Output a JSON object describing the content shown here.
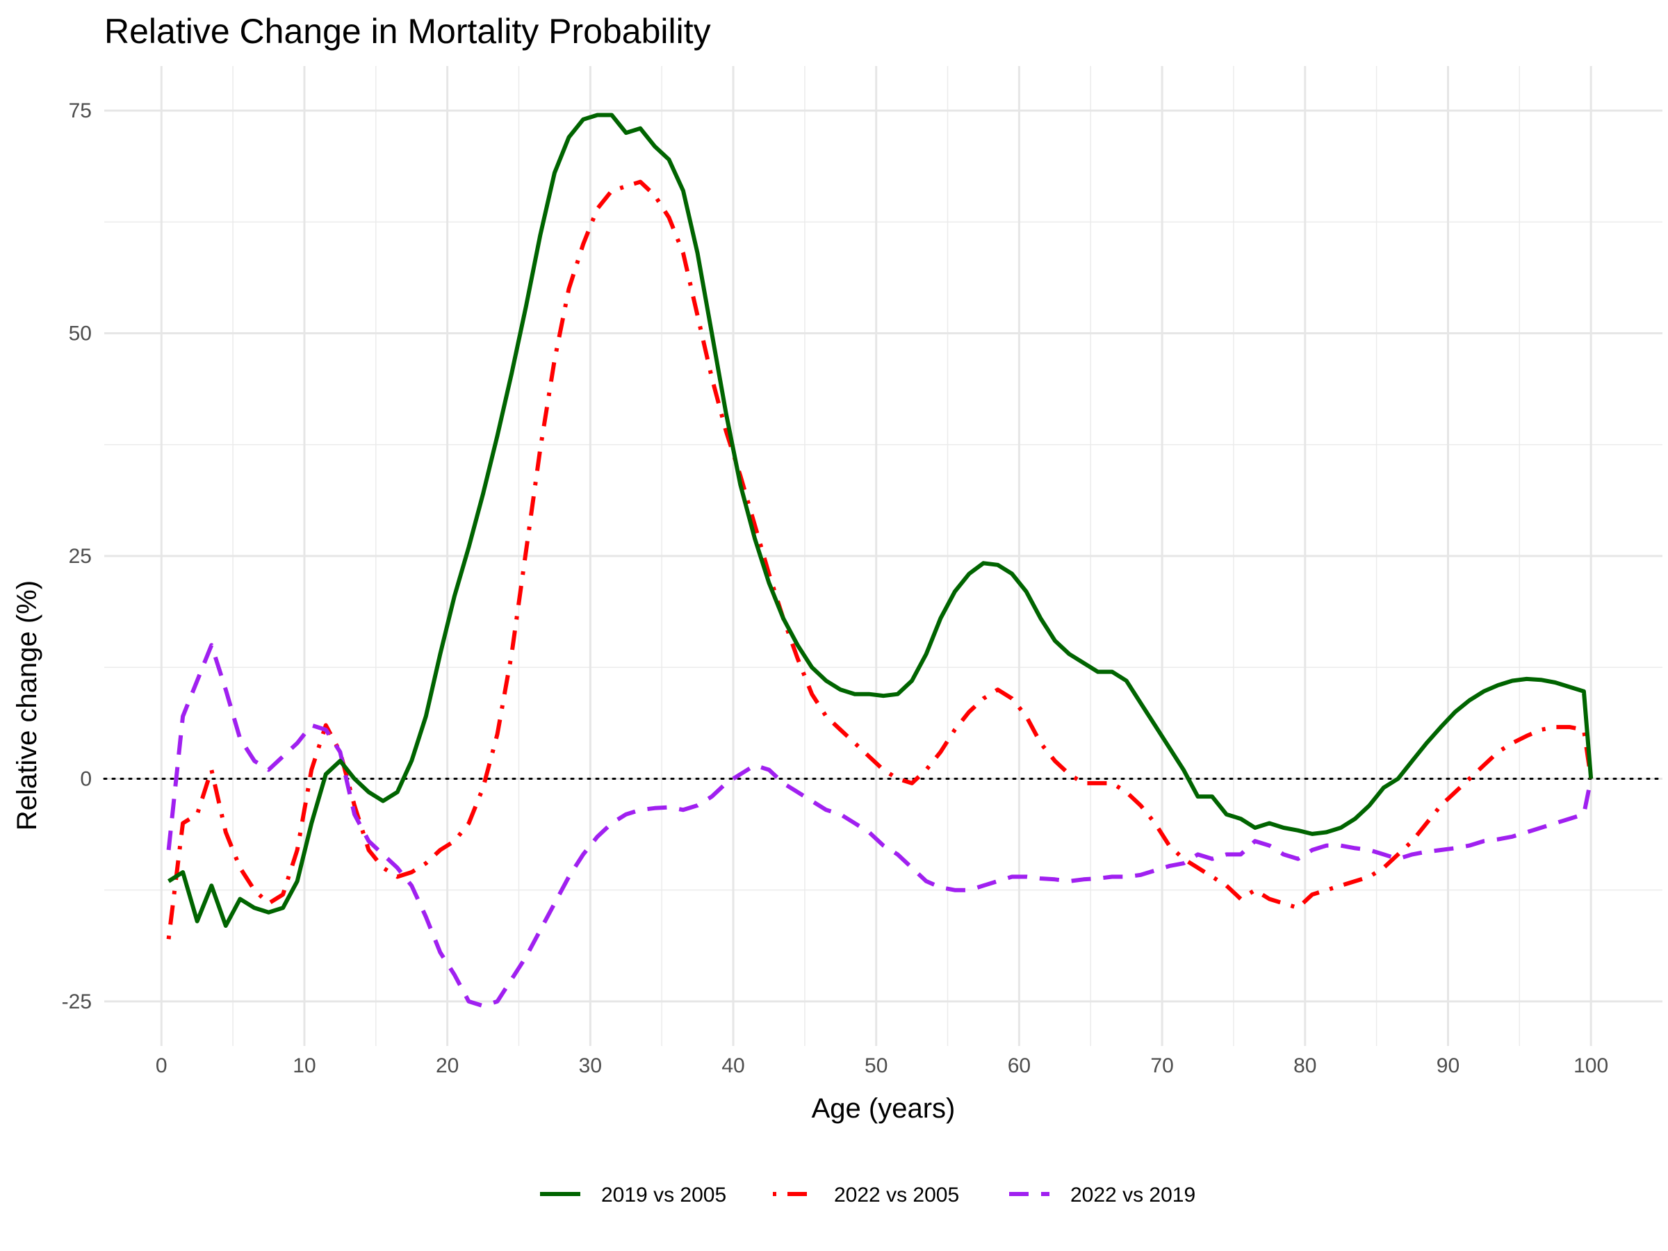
{
  "chart_data": {
    "type": "line",
    "title": "Relative Change in Mortality Probability",
    "xlabel": "Age (years)",
    "ylabel": "Relative change (%)",
    "xlim": [
      -4,
      105
    ],
    "ylim": [
      -30,
      80
    ],
    "x_ticks": [
      0,
      10,
      20,
      30,
      40,
      50,
      60,
      70,
      80,
      90,
      100
    ],
    "x_tick_labels": [
      "0",
      "10",
      "20",
      "30",
      "40",
      "50",
      "60",
      "70",
      "80",
      "90",
      "100"
    ],
    "y_ticks": [
      -25,
      0,
      25,
      50,
      75
    ],
    "y_tick_labels": [
      "-25",
      "0",
      "25",
      "50",
      "75"
    ],
    "reference_line": {
      "y": 0,
      "style": "dotted",
      "color": "#000000"
    },
    "grid": true,
    "legend_position": "bottom",
    "series": [
      {
        "name": "2019 vs 2005",
        "color": "#006400",
        "dash": "solid",
        "points": [
          [
            0.5,
            -11.5
          ],
          [
            1.5,
            -10.5
          ],
          [
            2.5,
            -16
          ],
          [
            3.5,
            -12
          ],
          [
            4.5,
            -16.5
          ],
          [
            5.5,
            -13.5
          ],
          [
            6.5,
            -14.5
          ],
          [
            7.5,
            -15
          ],
          [
            8.5,
            -14.5
          ],
          [
            9.5,
            -11.5
          ],
          [
            10.5,
            -5
          ],
          [
            11.5,
            0.5
          ],
          [
            12.5,
            2
          ],
          [
            13.5,
            0
          ],
          [
            14.5,
            -1.5
          ],
          [
            15.5,
            -2.5
          ],
          [
            16.5,
            -1.5
          ],
          [
            17.5,
            2
          ],
          [
            18.5,
            7
          ],
          [
            19.5,
            14
          ],
          [
            20.5,
            20.5
          ],
          [
            21.5,
            26
          ],
          [
            22.5,
            32
          ],
          [
            23.5,
            38.5
          ],
          [
            24.5,
            45.5
          ],
          [
            25.5,
            53
          ],
          [
            26.5,
            61
          ],
          [
            27.5,
            68
          ],
          [
            28.5,
            72
          ],
          [
            29.5,
            74
          ],
          [
            30.5,
            74.5
          ],
          [
            31.5,
            74.5
          ],
          [
            32.5,
            72.5
          ],
          [
            33.5,
            73
          ],
          [
            34.5,
            71
          ],
          [
            35.5,
            69.5
          ],
          [
            36.5,
            66
          ],
          [
            37.5,
            59
          ],
          [
            38.5,
            50
          ],
          [
            39.5,
            41
          ],
          [
            40.5,
            33
          ],
          [
            41.5,
            27
          ],
          [
            42.5,
            22
          ],
          [
            43.5,
            18
          ],
          [
            44.5,
            15
          ],
          [
            45.5,
            12.5
          ],
          [
            46.5,
            11
          ],
          [
            47.5,
            10
          ],
          [
            48.5,
            9.5
          ],
          [
            49.5,
            9.5
          ],
          [
            50.5,
            9.3
          ],
          [
            51.5,
            9.5
          ],
          [
            52.5,
            11
          ],
          [
            53.5,
            14
          ],
          [
            54.5,
            18
          ],
          [
            55.5,
            21
          ],
          [
            56.5,
            23
          ],
          [
            57.5,
            24.2
          ],
          [
            58.5,
            24
          ],
          [
            59.5,
            23
          ],
          [
            60.5,
            21
          ],
          [
            61.5,
            18
          ],
          [
            62.5,
            15.5
          ],
          [
            63.5,
            14
          ],
          [
            64.5,
            13
          ],
          [
            65.5,
            12
          ],
          [
            66.5,
            12
          ],
          [
            67.5,
            11
          ],
          [
            68.5,
            8.5
          ],
          [
            69.5,
            6
          ],
          [
            70.5,
            3.5
          ],
          [
            71.5,
            1
          ],
          [
            72.5,
            -2
          ],
          [
            73.5,
            -2
          ],
          [
            74.5,
            -4
          ],
          [
            75.5,
            -4.5
          ],
          [
            76.5,
            -5.5
          ],
          [
            77.5,
            -5
          ],
          [
            78.5,
            -5.5
          ],
          [
            79.5,
            -5.8
          ],
          [
            80.5,
            -6.2
          ],
          [
            81.5,
            -6
          ],
          [
            82.5,
            -5.5
          ],
          [
            83.5,
            -4.5
          ],
          [
            84.5,
            -3
          ],
          [
            85.5,
            -1
          ],
          [
            86.5,
            0
          ],
          [
            87.5,
            2
          ],
          [
            88.5,
            4
          ],
          [
            89.5,
            5.8
          ],
          [
            90.5,
            7.5
          ],
          [
            91.5,
            8.8
          ],
          [
            92.5,
            9.8
          ],
          [
            93.5,
            10.5
          ],
          [
            94.5,
            11
          ],
          [
            95.5,
            11.2
          ],
          [
            96.5,
            11.1
          ],
          [
            97.5,
            10.8
          ],
          [
            98.5,
            10.3
          ],
          [
            99.5,
            9.8
          ],
          [
            100,
            0
          ]
        ]
      },
      {
        "name": "2022 vs 2005",
        "color": "#ff0000",
        "dash": "dotdash",
        "points": [
          [
            0.5,
            -18
          ],
          [
            1.5,
            -5
          ],
          [
            2.5,
            -4
          ],
          [
            3.5,
            1
          ],
          [
            4.5,
            -6
          ],
          [
            5.5,
            -10
          ],
          [
            6.5,
            -12.5
          ],
          [
            7.5,
            -14
          ],
          [
            8.5,
            -13
          ],
          [
            9.5,
            -8
          ],
          [
            10.5,
            1
          ],
          [
            11.5,
            6
          ],
          [
            12.5,
            3
          ],
          [
            13.5,
            -3
          ],
          [
            14.5,
            -8
          ],
          [
            15.5,
            -10
          ],
          [
            16.5,
            -11
          ],
          [
            17.5,
            -10.5
          ],
          [
            18.5,
            -9.5
          ],
          [
            19.5,
            -8
          ],
          [
            20.5,
            -7
          ],
          [
            21.5,
            -5
          ],
          [
            22.5,
            -1
          ],
          [
            23.5,
            5
          ],
          [
            24.5,
            14
          ],
          [
            25.5,
            25.5
          ],
          [
            26.5,
            37
          ],
          [
            27.5,
            47
          ],
          [
            28.5,
            55
          ],
          [
            29.5,
            60
          ],
          [
            30.5,
            64
          ],
          [
            31.5,
            66
          ],
          [
            32.5,
            66.5
          ],
          [
            33.5,
            67
          ],
          [
            34.5,
            65.5
          ],
          [
            35.5,
            63
          ],
          [
            36.5,
            59
          ],
          [
            37.5,
            52
          ],
          [
            38.5,
            45
          ],
          [
            39.5,
            39
          ],
          [
            40.5,
            34
          ],
          [
            41.5,
            28.5
          ],
          [
            42.5,
            23
          ],
          [
            43.5,
            18
          ],
          [
            44.5,
            13.5
          ],
          [
            45.5,
            9.5
          ],
          [
            46.5,
            7
          ],
          [
            47.5,
            5.5
          ],
          [
            48.5,
            4
          ],
          [
            49.5,
            2.5
          ],
          [
            50.5,
            1
          ],
          [
            51.5,
            0
          ],
          [
            52.5,
            -0.5
          ],
          [
            53.5,
            1
          ],
          [
            54.5,
            3
          ],
          [
            55.5,
            5.5
          ],
          [
            56.5,
            7.5
          ],
          [
            57.5,
            9
          ],
          [
            58.5,
            10
          ],
          [
            59.5,
            9
          ],
          [
            60.5,
            7
          ],
          [
            61.5,
            4
          ],
          [
            62.5,
            2
          ],
          [
            63.5,
            0.5
          ],
          [
            64.5,
            -0.5
          ],
          [
            65.5,
            -0.5
          ],
          [
            66.5,
            -0.5
          ],
          [
            67.5,
            -1.5
          ],
          [
            68.5,
            -3
          ],
          [
            69.5,
            -5
          ],
          [
            70.5,
            -7.5
          ],
          [
            71.5,
            -9
          ],
          [
            72.5,
            -10
          ],
          [
            73.5,
            -11
          ],
          [
            74.5,
            -12
          ],
          [
            75.5,
            -13.5
          ],
          [
            76.5,
            -12.5
          ],
          [
            77.5,
            -13.5
          ],
          [
            78.5,
            -14
          ],
          [
            79.5,
            -14.5
          ],
          [
            80.5,
            -13
          ],
          [
            81.5,
            -12.5
          ],
          [
            82.5,
            -12
          ],
          [
            83.5,
            -11.5
          ],
          [
            84.5,
            -11
          ],
          [
            85.5,
            -10
          ],
          [
            86.5,
            -8.5
          ],
          [
            87.5,
            -7
          ],
          [
            88.5,
            -5
          ],
          [
            89.5,
            -3
          ],
          [
            90.5,
            -1.5
          ],
          [
            91.5,
            0
          ],
          [
            92.5,
            1.5
          ],
          [
            93.5,
            3
          ],
          [
            94.5,
            4
          ],
          [
            95.5,
            4.8
          ],
          [
            96.5,
            5.5
          ],
          [
            97.5,
            5.8
          ],
          [
            98.5,
            5.8
          ],
          [
            99.5,
            5.5
          ],
          [
            100,
            0
          ]
        ]
      },
      {
        "name": "2022 vs 2019",
        "color": "#a020f0",
        "dash": "dashed",
        "points": [
          [
            0.5,
            -8
          ],
          [
            1.5,
            7
          ],
          [
            2.5,
            11
          ],
          [
            3.5,
            15
          ],
          [
            4.5,
            10
          ],
          [
            5.5,
            4.5
          ],
          [
            6.5,
            2
          ],
          [
            7.5,
            1
          ],
          [
            8.5,
            2.5
          ],
          [
            9.5,
            4
          ],
          [
            10.5,
            6
          ],
          [
            11.5,
            5.5
          ],
          [
            12.5,
            3
          ],
          [
            13.5,
            -4
          ],
          [
            14.5,
            -7
          ],
          [
            15.5,
            -8.5
          ],
          [
            16.5,
            -10
          ],
          [
            17.5,
            -12
          ],
          [
            18.5,
            -15.5
          ],
          [
            19.5,
            -19.5
          ],
          [
            20.5,
            -22
          ],
          [
            21.5,
            -25
          ],
          [
            22.5,
            -25.5
          ],
          [
            23.5,
            -25
          ],
          [
            24.5,
            -22.5
          ],
          [
            25.5,
            -20
          ],
          [
            26.5,
            -17
          ],
          [
            27.5,
            -14
          ],
          [
            28.5,
            -11
          ],
          [
            29.5,
            -8.5
          ],
          [
            30.5,
            -6.5
          ],
          [
            31.5,
            -5
          ],
          [
            32.5,
            -4
          ],
          [
            33.5,
            -3.5
          ],
          [
            34.5,
            -3.3
          ],
          [
            35.5,
            -3.2
          ],
          [
            36.5,
            -3.5
          ],
          [
            37.5,
            -3
          ],
          [
            38.5,
            -2
          ],
          [
            39.5,
            -0.5
          ],
          [
            40.5,
            0.5
          ],
          [
            41.5,
            1.5
          ],
          [
            42.5,
            1
          ],
          [
            43.5,
            -0.5
          ],
          [
            44.5,
            -1.5
          ],
          [
            45.5,
            -2.5
          ],
          [
            46.5,
            -3.5
          ],
          [
            47.5,
            -4
          ],
          [
            48.5,
            -5
          ],
          [
            49.5,
            -6
          ],
          [
            50.5,
            -7.5
          ],
          [
            51.5,
            -8.5
          ],
          [
            52.5,
            -10
          ],
          [
            53.5,
            -11.5
          ],
          [
            54.5,
            -12.2
          ],
          [
            55.5,
            -12.5
          ],
          [
            56.5,
            -12.5
          ],
          [
            57.5,
            -12
          ],
          [
            58.5,
            -11.5
          ],
          [
            59.5,
            -11
          ],
          [
            60.5,
            -11
          ],
          [
            61.5,
            -11.2
          ],
          [
            62.5,
            -11.3
          ],
          [
            63.5,
            -11.5
          ],
          [
            64.5,
            -11.3
          ],
          [
            65.5,
            -11.2
          ],
          [
            66.5,
            -11
          ],
          [
            67.5,
            -11
          ],
          [
            68.5,
            -10.8
          ],
          [
            69.5,
            -10.3
          ],
          [
            70.5,
            -9.8
          ],
          [
            71.5,
            -9.5
          ],
          [
            72.5,
            -8.5
          ],
          [
            73.5,
            -9
          ],
          [
            74.5,
            -8.5
          ],
          [
            75.5,
            -8.5
          ],
          [
            76.5,
            -7
          ],
          [
            77.5,
            -7.5
          ],
          [
            78.5,
            -8.5
          ],
          [
            79.5,
            -9
          ],
          [
            80.5,
            -8
          ],
          [
            81.5,
            -7.5
          ],
          [
            82.5,
            -7.5
          ],
          [
            83.5,
            -7.8
          ],
          [
            84.5,
            -8
          ],
          [
            85.5,
            -8.5
          ],
          [
            86.5,
            -9
          ],
          [
            87.5,
            -8.5
          ],
          [
            88.5,
            -8.2
          ],
          [
            89.5,
            -8
          ],
          [
            90.5,
            -7.8
          ],
          [
            91.5,
            -7.5
          ],
          [
            92.5,
            -7
          ],
          [
            93.5,
            -6.8
          ],
          [
            94.5,
            -6.5
          ],
          [
            95.5,
            -6
          ],
          [
            96.5,
            -5.5
          ],
          [
            97.5,
            -5
          ],
          [
            98.5,
            -4.5
          ],
          [
            99.5,
            -4
          ],
          [
            100,
            0
          ]
        ]
      }
    ]
  }
}
